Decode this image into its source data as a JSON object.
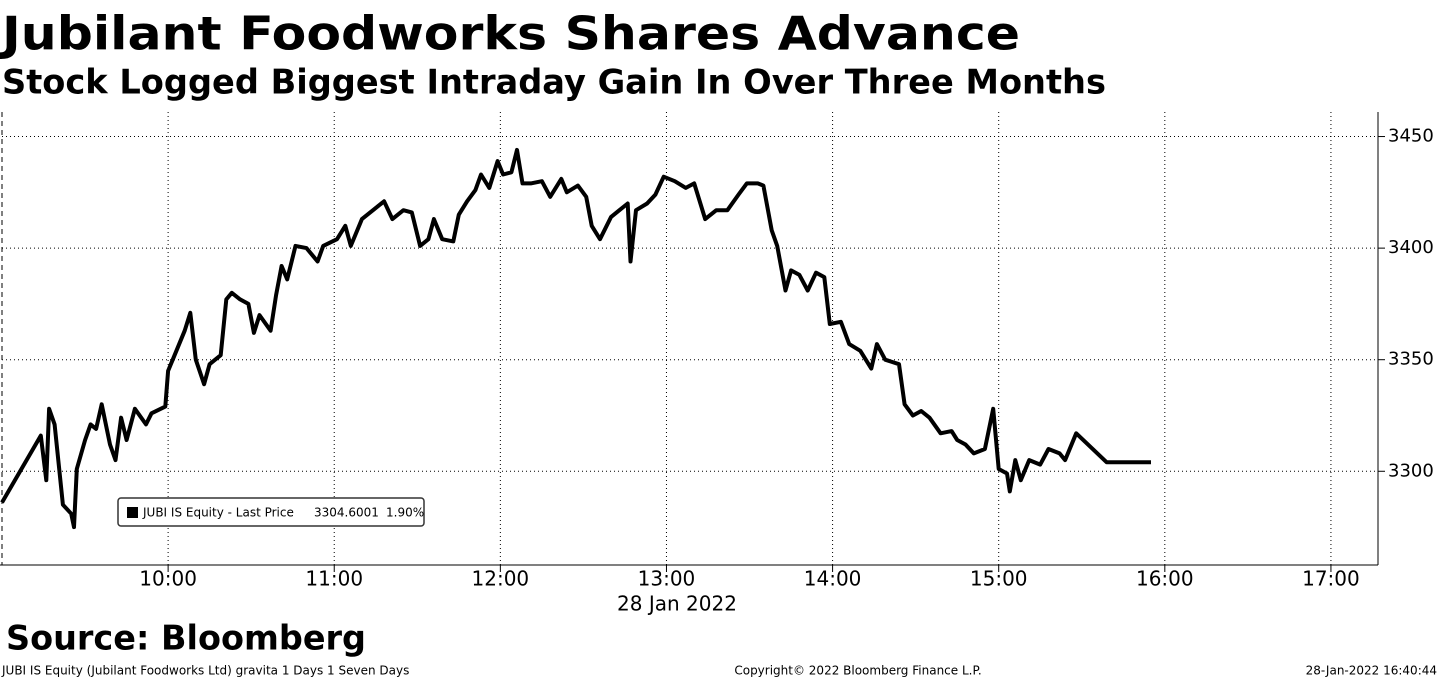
{
  "chart_data": {
    "type": "line",
    "title": "Jubilant Foodworks Shares Advance",
    "subtitle": "Stock Logged Biggest Intraday Gain In Over Three Months",
    "x_axis_label": "28 Jan 2022",
    "source": "Source: Bloomberg",
    "footer_left": "JUBI IS Equity (Jubilant Foodworks Ltd) gravita 1 Days 1 Seven Days",
    "footer_center": "Copyright© 2022 Bloomberg Finance L.P.",
    "footer_right": "28-Jan-2022 16:40:44",
    "legend": {
      "last_price": 3304.6001,
      "change": "1.90%"
    },
    "xlim": [
      "09:00",
      "17:17"
    ],
    "xticks": [
      "10:00",
      "11:00",
      "12:00",
      "13:00",
      "14:00",
      "15:00",
      "16:00",
      "17:00"
    ],
    "ylim": [
      3258,
      3461
    ],
    "yticks": [
      3300,
      3350,
      3400,
      3450
    ],
    "grid": true,
    "x": [
      "09:00",
      "09:14",
      "09:16",
      "09:17",
      "09:19",
      "09:22",
      "09:25",
      "09:26",
      "09:27",
      "09:30",
      "09:32",
      "09:34",
      "09:36",
      "09:39",
      "09:41",
      "09:43",
      "09:45",
      "09:48",
      "09:52",
      "09:54",
      "09:59",
      "10:00",
      "10:03",
      "10:06",
      "10:08",
      "10:10",
      "10:13",
      "10:15",
      "10:19",
      "10:21",
      "10:23",
      "10:26",
      "10:29",
      "10:31",
      "10:33",
      "10:37",
      "10:39",
      "10:41",
      "10:43",
      "10:46",
      "10:50",
      "10:54",
      "10:56",
      "11:01",
      "11:04",
      "11:06",
      "11:10",
      "11:14",
      "11:18",
      "11:21",
      "11:25",
      "11:28",
      "11:31",
      "11:34",
      "11:36",
      "11:39",
      "11:43",
      "11:45",
      "11:48",
      "11:51",
      "11:53",
      "11:56",
      "11:59",
      "12:01",
      "12:04",
      "12:06",
      "12:08",
      "12:11",
      "12:15",
      "12:18",
      "12:22",
      "12:24",
      "12:28",
      "12:31",
      "12:33",
      "12:36",
      "12:40",
      "12:43",
      "12:46",
      "12:47",
      "12:49",
      "12:53",
      "12:56",
      "12:59",
      "13:03",
      "13:07",
      "13:10",
      "13:14",
      "13:18",
      "13:22",
      "13:26",
      "13:29",
      "13:33",
      "13:35",
      "13:38",
      "13:40",
      "13:43",
      "13:45",
      "13:48",
      "13:51",
      "13:54",
      "13:57",
      "13:59",
      "14:03",
      "14:06",
      "14:10",
      "14:14",
      "14:16",
      "14:19",
      "14:24",
      "14:26",
      "14:29",
      "14:32",
      "14:35",
      "14:39",
      "14:43",
      "14:45",
      "14:48",
      "14:51",
      "14:55",
      "14:58",
      "15:00",
      "15:03",
      "15:04",
      "15:06",
      "15:08",
      "15:11",
      "15:15",
      "15:18",
      "15:22",
      "15:24",
      "15:28",
      "15:39",
      "15:55"
    ],
    "series": [
      {
        "name": "JUBI IS Equity - Last Price",
        "color": "#000000",
        "values": [
          3286,
          3316,
          3296,
          3328,
          3321,
          3285,
          3281,
          3275,
          3301,
          3314,
          3321,
          3319,
          3330,
          3312,
          3305,
          3324,
          3314,
          3328,
          3321,
          3326,
          3329,
          3345,
          3354,
          3363,
          3371,
          3350,
          3339,
          3348,
          3352,
          3377,
          3380,
          3377,
          3375,
          3362,
          3370,
          3363,
          3379,
          3392,
          3386,
          3401,
          3400,
          3394,
          3401,
          3404,
          3410,
          3401,
          3413,
          3417,
          3421,
          3413,
          3417,
          3416,
          3401,
          3404,
          3413,
          3404,
          3403,
          3415,
          3421,
          3426,
          3433,
          3427,
          3439,
          3433,
          3434,
          3444,
          3429,
          3429,
          3430,
          3423,
          3431,
          3425,
          3428,
          3423,
          3410,
          3404,
          3414,
          3417,
          3420,
          3394,
          3417,
          3420,
          3424,
          3432,
          3430,
          3427,
          3429,
          3413,
          3417,
          3417,
          3424,
          3429,
          3429,
          3428,
          3408,
          3401,
          3381,
          3390,
          3388,
          3381,
          3389,
          3387,
          3366,
          3367,
          3357,
          3354,
          3346,
          3357,
          3350,
          3348,
          3330,
          3325,
          3327,
          3324,
          3317,
          3318,
          3314,
          3312,
          3308,
          3310,
          3328,
          3301,
          3299,
          3291,
          3305,
          3296,
          3305,
          3303,
          3310,
          3308,
          3305,
          3317,
          3304,
          3304
        ]
      }
    ]
  }
}
